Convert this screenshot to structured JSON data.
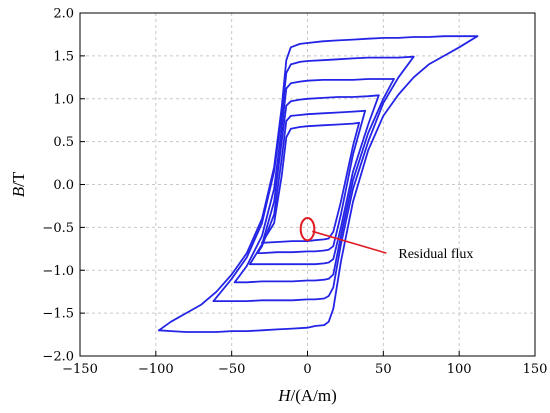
{
  "chart_data": {
    "type": "line",
    "title": "",
    "xlabel": {
      "symbol": "H",
      "unit": "/(A/m)"
    },
    "ylabel": {
      "symbol": "B",
      "unit": "/T"
    },
    "xlim": [
      -150,
      150
    ],
    "ylim": [
      -2.0,
      2.0
    ],
    "x_ticks": [
      -150,
      -100,
      -50,
      0,
      50,
      100,
      150
    ],
    "y_ticks": [
      -2.0,
      -1.5,
      -1.0,
      -0.5,
      0.0,
      0.5,
      1.0,
      1.5,
      2.0
    ],
    "grid": true,
    "grid_style": "dashed",
    "legend": "none",
    "line_color": "#2424e6",
    "annotation": {
      "text": "Residual flux",
      "marker": "ellipse",
      "center": {
        "x": 0,
        "y": -0.52
      },
      "radius": {
        "x": 4.5,
        "y": 0.13
      },
      "arrow_to": {
        "x": 52,
        "y": -0.8
      },
      "color": "#e01b24"
    },
    "series": [
      {
        "x": [
          -98,
          -90,
          -80,
          -70,
          -60,
          -50,
          -40,
          -30,
          -22,
          -17,
          -14,
          -11,
          -5,
          0,
          10,
          20,
          30,
          40,
          50,
          60,
          70,
          80,
          90,
          100,
          112
        ],
        "y": [
          -1.7,
          -1.6,
          -1.5,
          -1.4,
          -1.25,
          -1.05,
          -0.8,
          -0.4,
          0.2,
          0.9,
          1.45,
          1.6,
          1.64,
          1.65,
          1.67,
          1.68,
          1.69,
          1.7,
          1.71,
          1.71,
          1.72,
          1.72,
          1.73,
          1.73,
          1.73
        ]
      },
      {
        "x": [
          112,
          100,
          90,
          80,
          70,
          60,
          50,
          40,
          30,
          22,
          17,
          14,
          11,
          5,
          0,
          -10,
          -20,
          -30,
          -40,
          -50,
          -60,
          -70,
          -80,
          -90,
          -98
        ],
        "y": [
          1.73,
          1.6,
          1.5,
          1.4,
          1.25,
          1.05,
          0.8,
          0.4,
          -0.2,
          -0.9,
          -1.45,
          -1.6,
          -1.64,
          -1.65,
          -1.67,
          -1.68,
          -1.69,
          -1.7,
          -1.71,
          -1.71,
          -1.72,
          -1.72,
          -1.72,
          -1.71,
          -1.7
        ]
      },
      {
        "x": [
          -62,
          -50,
          -40,
          -30,
          -22,
          -17,
          -14,
          -11,
          -5,
          0,
          10,
          20,
          30,
          40,
          50,
          60,
          70
        ],
        "y": [
          -1.36,
          -1.1,
          -0.85,
          -0.45,
          0.15,
          0.8,
          1.3,
          1.4,
          1.43,
          1.44,
          1.45,
          1.46,
          1.47,
          1.48,
          1.48,
          1.48,
          1.49
        ]
      },
      {
        "x": [
          70,
          60,
          50,
          40,
          30,
          22,
          17,
          14,
          11,
          5,
          0,
          -10,
          -20,
          -30,
          -40,
          -50,
          -62
        ],
        "y": [
          1.49,
          1.25,
          0.95,
          0.5,
          -0.05,
          -0.7,
          -1.2,
          -1.3,
          -1.33,
          -1.34,
          -1.34,
          -1.35,
          -1.35,
          -1.35,
          -1.36,
          -1.36,
          -1.36
        ]
      },
      {
        "x": [
          -48,
          -40,
          -30,
          -22,
          -17,
          -14,
          -11,
          -5,
          0,
          10,
          20,
          30,
          40,
          50,
          57
        ],
        "y": [
          -1.14,
          -0.95,
          -0.6,
          -0.05,
          0.65,
          1.12,
          1.18,
          1.2,
          1.21,
          1.22,
          1.22,
          1.22,
          1.23,
          1.23,
          1.23
        ]
      },
      {
        "x": [
          57,
          50,
          40,
          30,
          22,
          17,
          14,
          11,
          5,
          0,
          -10,
          -20,
          -30,
          -40,
          -48
        ],
        "y": [
          1.23,
          1.0,
          0.6,
          0.05,
          -0.6,
          -1.05,
          -1.1,
          -1.11,
          -1.12,
          -1.12,
          -1.13,
          -1.13,
          -1.13,
          -1.14,
          -1.14
        ]
      },
      {
        "x": [
          -38,
          -30,
          -22,
          -17,
          -14,
          -11,
          -5,
          0,
          10,
          20,
          30,
          40,
          47
        ],
        "y": [
          -0.93,
          -0.7,
          -0.2,
          0.5,
          0.92,
          0.97,
          0.99,
          1.0,
          1.01,
          1.02,
          1.02,
          1.03,
          1.04
        ]
      },
      {
        "x": [
          47,
          40,
          30,
          22,
          17,
          14,
          11,
          5,
          0,
          -10,
          -20,
          -30,
          -38
        ],
        "y": [
          1.04,
          0.7,
          0.15,
          -0.5,
          -0.87,
          -0.91,
          -0.92,
          -0.93,
          -0.93,
          -0.93,
          -0.93,
          -0.93,
          -0.93
        ]
      },
      {
        "x": [
          -33,
          -30,
          -22,
          -17,
          -14,
          -11,
          -5,
          0,
          10,
          20,
          30,
          38
        ],
        "y": [
          -0.8,
          -0.72,
          -0.35,
          0.3,
          0.74,
          0.8,
          0.81,
          0.82,
          0.83,
          0.84,
          0.85,
          0.86
        ]
      },
      {
        "x": [
          38,
          30,
          22,
          17,
          14,
          11,
          5,
          0,
          -10,
          -20,
          -30,
          -33
        ],
        "y": [
          0.86,
          0.35,
          -0.35,
          -0.72,
          -0.76,
          -0.77,
          -0.78,
          -0.78,
          -0.79,
          -0.79,
          -0.8,
          -0.8
        ]
      },
      {
        "x": [
          -30,
          -22,
          -17,
          -14,
          -11,
          -5,
          0,
          10,
          20,
          30,
          34
        ],
        "y": [
          -0.68,
          -0.45,
          0.1,
          0.55,
          0.65,
          0.67,
          0.68,
          0.69,
          0.7,
          0.71,
          0.72
        ]
      },
      {
        "x": [
          34,
          30,
          22,
          17,
          14,
          11,
          5,
          0,
          -10,
          -20,
          -30
        ],
        "y": [
          0.72,
          0.45,
          -0.2,
          -0.55,
          -0.63,
          -0.64,
          -0.65,
          -0.66,
          -0.66,
          -0.67,
          -0.68
        ]
      }
    ]
  }
}
